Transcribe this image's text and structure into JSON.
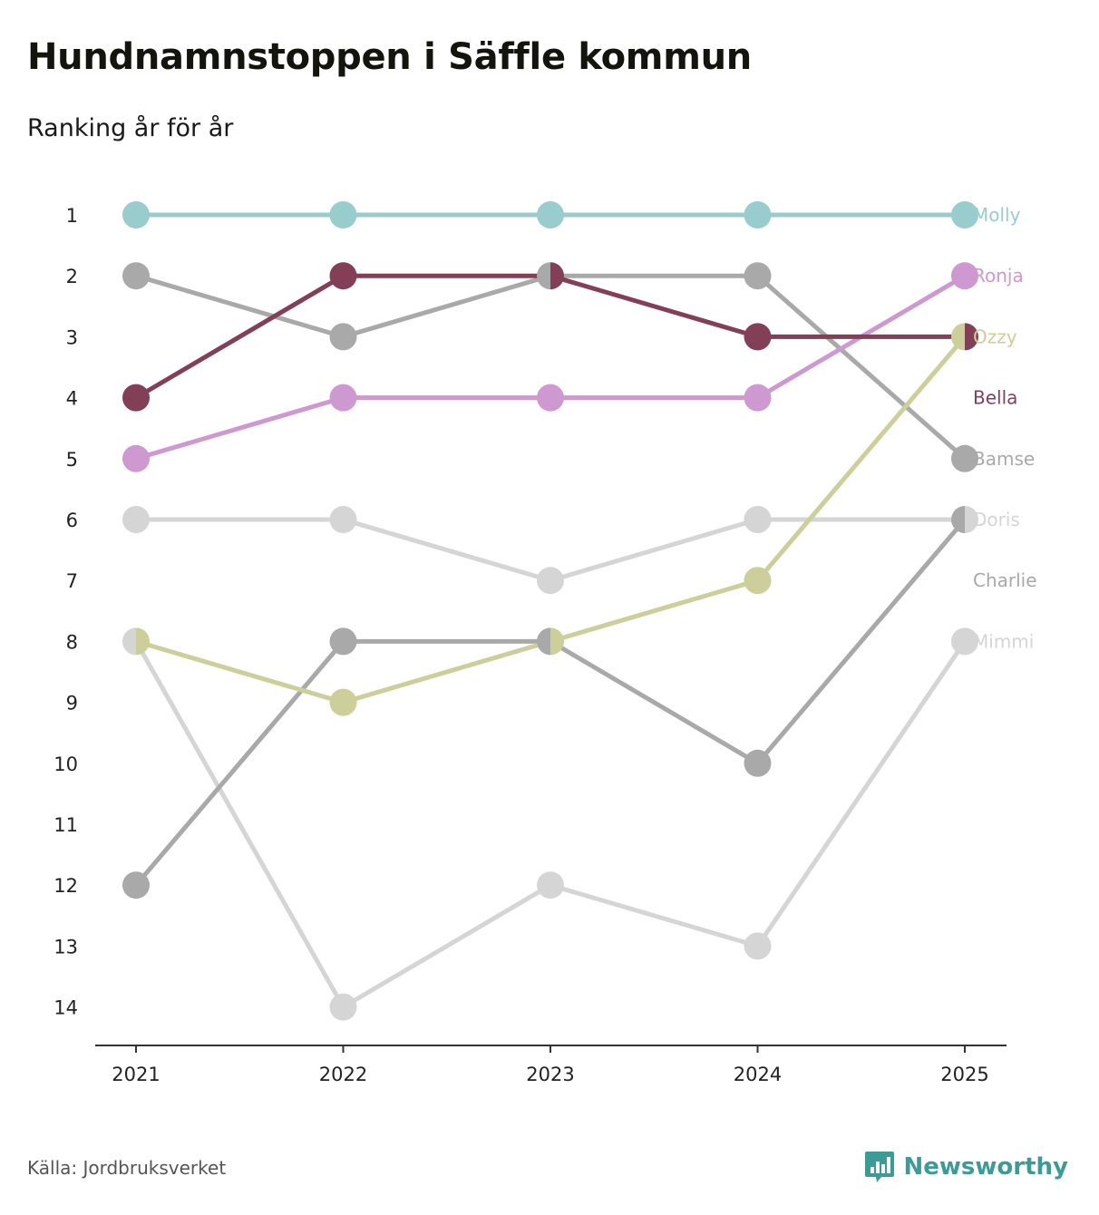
{
  "header": {
    "title": "Hundnamnstoppen i Säffle kommun",
    "subtitle": "Ranking år för år"
  },
  "footer": {
    "source": "Källa: Jordbruksverket",
    "brand": "Newsworthy",
    "brand_color": "#3d9b97",
    "brand_icon": "bar-chart-icon"
  },
  "chart_data": {
    "type": "line",
    "title": "Hundnamnstoppen i Säffle kommun",
    "subtitle": "Ranking år för år",
    "xlabel": "",
    "ylabel": "",
    "categories": [
      "2021",
      "2022",
      "2023",
      "2024",
      "2025"
    ],
    "y_ticks": [
      1,
      2,
      3,
      4,
      5,
      6,
      7,
      8,
      9,
      10,
      11,
      12,
      13,
      14
    ],
    "ylim": [
      1,
      14
    ],
    "y_inverted": true,
    "grid": false,
    "series": [
      {
        "name": "Mimmi",
        "color": "#d5d5d5",
        "values": [
          8,
          14,
          12,
          13,
          8
        ]
      },
      {
        "name": "Charlie",
        "color": "#a9a9a9",
        "values": [
          12,
          8,
          8,
          10,
          6
        ]
      },
      {
        "name": "Doris",
        "color": "#d5d5d5",
        "values": [
          6,
          6,
          7,
          6,
          6
        ]
      },
      {
        "name": "Bamse",
        "color": "#a9a9a9",
        "values": [
          2,
          3,
          2,
          2,
          5
        ]
      },
      {
        "name": "Ozzy",
        "color": "#cccf9a",
        "values": [
          8,
          9,
          8,
          7,
          3
        ]
      },
      {
        "name": "Ronja",
        "color": "#cd99d0",
        "values": [
          5,
          4,
          4,
          4,
          2
        ]
      },
      {
        "name": "Bella",
        "color": "#823f55",
        "values": [
          4,
          2,
          2,
          3,
          3
        ]
      },
      {
        "name": "Molly",
        "color": "#99cccc",
        "values": [
          1,
          1,
          1,
          1,
          1
        ]
      }
    ],
    "end_labels": [
      {
        "name": "Molly",
        "rank": 1,
        "color": "#99cccc"
      },
      {
        "name": "Ronja",
        "rank": 2,
        "color": "#cd99d0"
      },
      {
        "name": "Ozzy",
        "rank": 3,
        "color": "#cccf9a"
      },
      {
        "name": "Bella",
        "rank": 4,
        "color": "#823f55"
      },
      {
        "name": "Bamse",
        "rank": 5,
        "color": "#a9a9a9"
      },
      {
        "name": "Doris",
        "rank": 6,
        "color": "#d5d5d5"
      },
      {
        "name": "Charlie",
        "rank": 7,
        "color": "#a9a9a9"
      },
      {
        "name": "Mimmi",
        "rank": 8,
        "color": "#d5d5d5"
      }
    ],
    "legend": "right end labels"
  }
}
